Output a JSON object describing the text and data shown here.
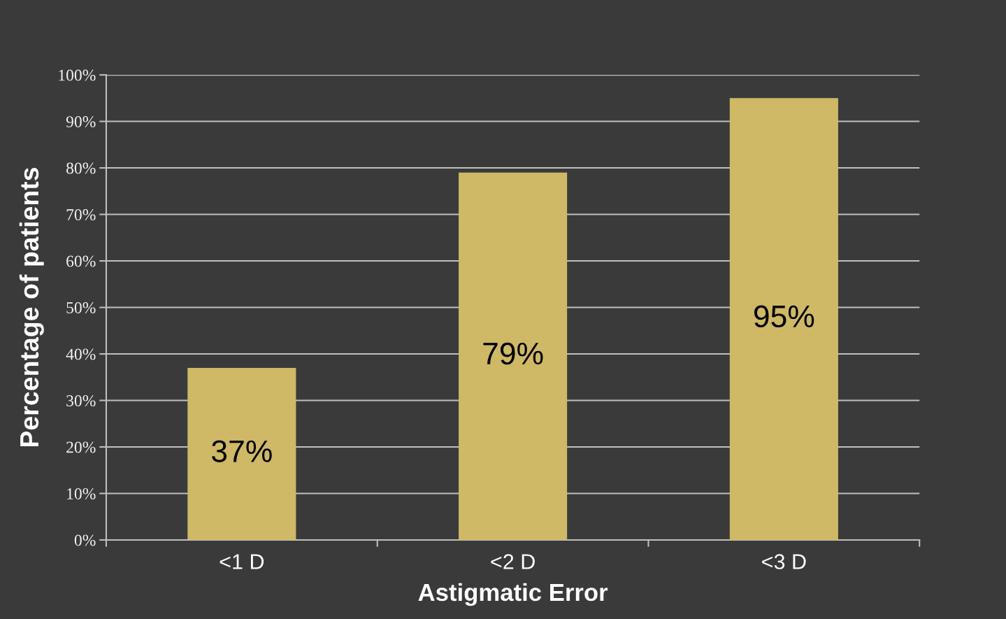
{
  "chart_data": {
    "type": "bar",
    "xlabel": "Astigmatic Error",
    "ylabel": "Percentage of patients",
    "categories": [
      "<1 D",
      "<2 D",
      "<3 D"
    ],
    "values": [
      37,
      79,
      95
    ],
    "color": "#cfb866",
    "value_labels": [
      "37%",
      "79%",
      "95%"
    ],
    "ylim": [
      0,
      100
    ],
    "yticks": [
      {
        "value": 0,
        "label": "0%"
      },
      {
        "value": 10,
        "label": "10%"
      },
      {
        "value": 20,
        "label": "20%"
      },
      {
        "value": 30,
        "label": "30%"
      },
      {
        "value": 40,
        "label": "40%"
      },
      {
        "value": 50,
        "label": "50%"
      },
      {
        "value": 60,
        "label": "60%"
      },
      {
        "value": 70,
        "label": "70%"
      },
      {
        "value": 80,
        "label": "80%"
      },
      {
        "value": 90,
        "label": "90%"
      },
      {
        "value": 100,
        "label": "100%"
      }
    ],
    "grid": "y"
  }
}
